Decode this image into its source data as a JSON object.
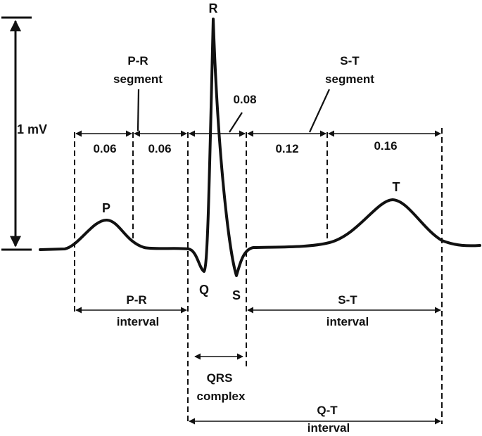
{
  "title": "",
  "voltage": {
    "label": "1 mV"
  },
  "waves": {
    "p": "P",
    "q": "Q",
    "r": "R",
    "s": "S",
    "t": "T"
  },
  "segments": {
    "pr": {
      "line1": "P-R",
      "line2": "segment"
    },
    "st": {
      "line1": "S-T",
      "line2": "segment"
    }
  },
  "durations": {
    "a": "0.06",
    "b": "0.06",
    "qrs": "0.08",
    "st": "0.12",
    "t": "0.16"
  },
  "intervals": {
    "pr": {
      "line1": "P-R",
      "line2": "interval"
    },
    "st": {
      "line1": "S-T",
      "line2": "interval"
    },
    "qrs": {
      "line1": "QRS",
      "line2": "complex"
    },
    "qt": {
      "line1": "Q-T",
      "line2": "interval"
    }
  }
}
